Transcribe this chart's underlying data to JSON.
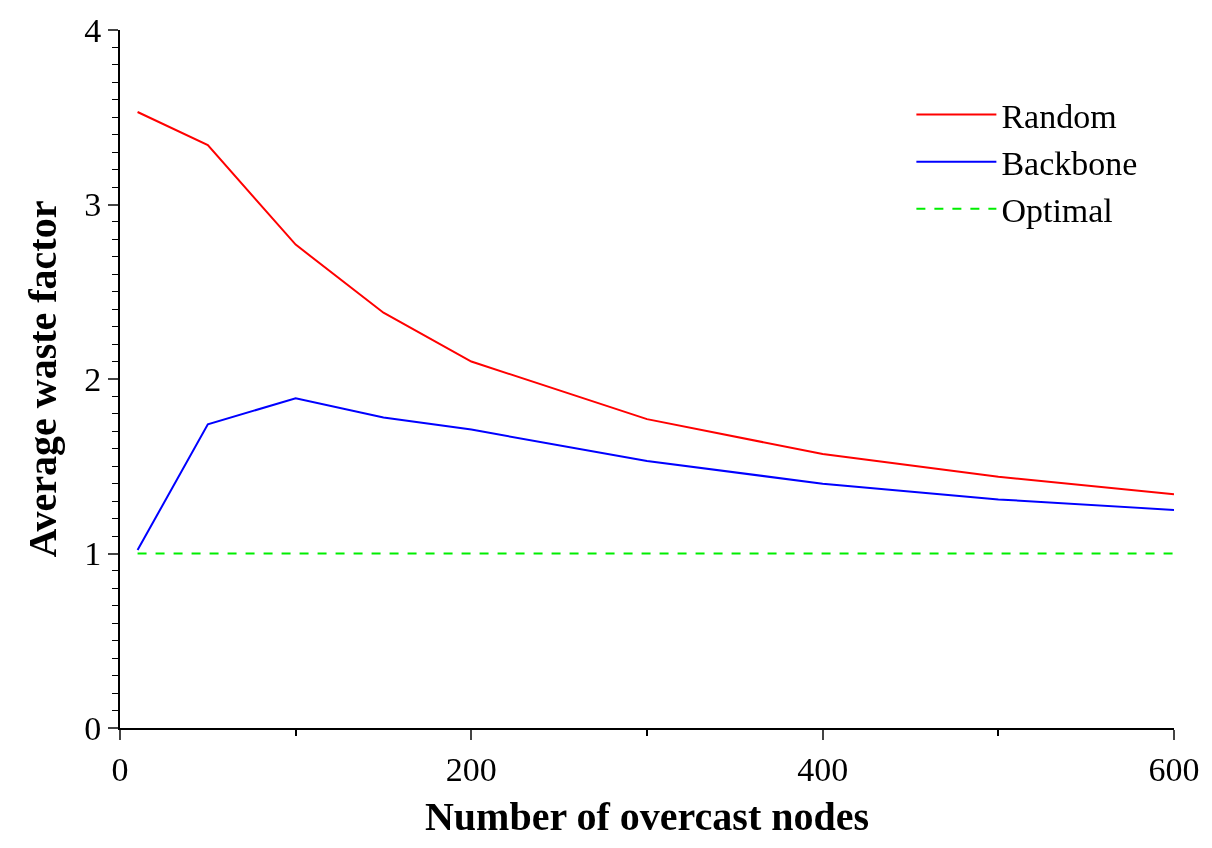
{
  "chart_data": {
    "type": "line",
    "xlabel": "Number of overcast nodes",
    "ylabel": "Average waste factor",
    "xlim": [
      0,
      600
    ],
    "ylim": [
      0,
      4
    ],
    "xticks": [
      0,
      {
        "value": 100,
        "label": null
      },
      200,
      {
        "value": 300,
        "label": null
      },
      400,
      {
        "value": 500,
        "label": null
      },
      600
    ],
    "yticks": [
      0,
      {
        "value": 0.1,
        "label": null
      },
      {
        "value": 0.2,
        "label": null
      },
      {
        "value": 0.3,
        "label": null
      },
      {
        "value": 0.4,
        "label": null
      },
      {
        "value": 0.5,
        "label": null
      },
      {
        "value": 0.6,
        "label": null
      },
      {
        "value": 0.7,
        "label": null
      },
      {
        "value": 0.8,
        "label": null
      },
      {
        "value": 0.9,
        "label": null
      },
      1,
      {
        "value": 1.1,
        "label": null
      },
      {
        "value": 1.2,
        "label": null
      },
      {
        "value": 1.3,
        "label": null
      },
      {
        "value": 1.4,
        "label": null
      },
      {
        "value": 1.5,
        "label": null
      },
      {
        "value": 1.6,
        "label": null
      },
      {
        "value": 1.7,
        "label": null
      },
      {
        "value": 1.8,
        "label": null
      },
      {
        "value": 1.9,
        "label": null
      },
      2,
      {
        "value": 2.1,
        "label": null
      },
      {
        "value": 2.2,
        "label": null
      },
      {
        "value": 2.3,
        "label": null
      },
      {
        "value": 2.4,
        "label": null
      },
      {
        "value": 2.5,
        "label": null
      },
      {
        "value": 2.6,
        "label": null
      },
      {
        "value": 2.7,
        "label": null
      },
      {
        "value": 2.8,
        "label": null
      },
      {
        "value": 2.9,
        "label": null
      },
      3,
      {
        "value": 3.1,
        "label": null
      },
      {
        "value": 3.2,
        "label": null
      },
      {
        "value": 3.3,
        "label": null
      },
      {
        "value": 3.4,
        "label": null
      },
      {
        "value": 3.5,
        "label": null
      },
      {
        "value": 3.6,
        "label": null
      },
      {
        "value": 3.7,
        "label": null
      },
      {
        "value": 3.8,
        "label": null
      },
      {
        "value": 3.9,
        "label": null
      },
      4
    ],
    "x": [
      10,
      50,
      100,
      150,
      200,
      300,
      400,
      500,
      600
    ],
    "series": [
      {
        "name": "Random",
        "color": "#ff0000",
        "values": [
          3.53,
          3.34,
          2.77,
          2.38,
          2.1,
          1.77,
          1.57,
          1.44,
          1.34
        ]
      },
      {
        "name": "Backbone",
        "color": "#0000ff",
        "values": [
          1.02,
          1.74,
          1.89,
          1.78,
          1.71,
          1.53,
          1.4,
          1.31,
          1.25
        ]
      },
      {
        "name": "Optimal",
        "color": "#00ee00",
        "line_style": "dashed",
        "values": [
          1,
          1,
          1,
          1,
          1,
          1,
          1,
          1,
          1
        ]
      }
    ],
    "legend": "top right",
    "marker": "none"
  }
}
